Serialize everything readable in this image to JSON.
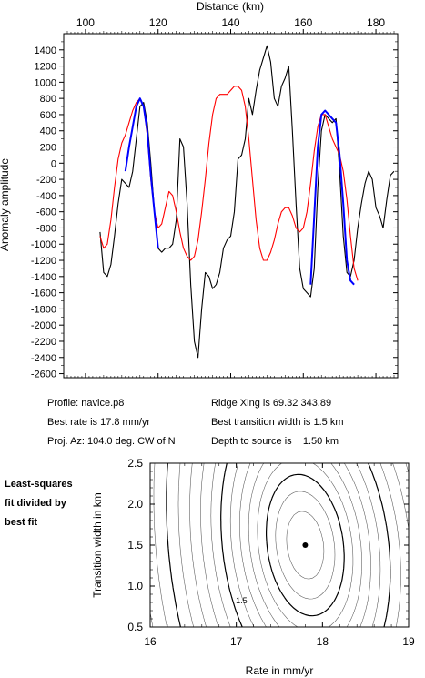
{
  "info": {
    "profile": "Profile: navice.p8",
    "best_rate": "Best rate is 17.8 mm/yr",
    "proj_az": "Proj. Az: 104.0 deg. CW of N",
    "ridge_xing": "Ridge Xing is 69.32 343.89",
    "best_width": "Best transition width is 1.5 km",
    "depth": "Depth to source is    1.50 km"
  },
  "side_note": [
    "Least-squares",
    "fit divided by",
    "best fit"
  ],
  "chart_data": [
    {
      "type": "line",
      "xlabel": "Distance (km)",
      "ylabel": "Anomaly amplitude",
      "xlim": [
        94,
        186
      ],
      "ylim": [
        -2650,
        1600
      ],
      "x_ticks": [
        100,
        120,
        140,
        160,
        180
      ],
      "y_ticks": [
        1400,
        1200,
        1000,
        800,
        600,
        400,
        200,
        0,
        -200,
        -400,
        -600,
        -800,
        -1000,
        -1200,
        -1400,
        -1600,
        -1800,
        -2000,
        -2200,
        -2400,
        -2600
      ],
      "x_axis_position": "top",
      "grid": false,
      "colors": {
        "observed": "#000000",
        "model": "#ff0000",
        "fitted": "#0000ff"
      },
      "series": [
        {
          "role": "observed",
          "color": "#000000",
          "points": [
            [
              104,
              -850
            ],
            [
              105,
              -1350
            ],
            [
              106,
              -1400
            ],
            [
              107,
              -1250
            ],
            [
              108,
              -900
            ],
            [
              109,
              -500
            ],
            [
              110,
              -200
            ],
            [
              111,
              -250
            ],
            [
              112,
              -300
            ],
            [
              113,
              -100
            ],
            [
              114,
              300
            ],
            [
              115,
              700
            ],
            [
              116,
              750
            ],
            [
              117,
              500
            ],
            [
              118,
              0
            ],
            [
              119,
              -600
            ],
            [
              120,
              -1050
            ],
            [
              121,
              -1100
            ],
            [
              122,
              -1050
            ],
            [
              123,
              -1050
            ],
            [
              124,
              -1000
            ],
            [
              125,
              -700
            ],
            [
              126,
              300
            ],
            [
              127,
              200
            ],
            [
              128,
              -500
            ],
            [
              129,
              -1500
            ],
            [
              130,
              -2200
            ],
            [
              131,
              -2400
            ],
            [
              132,
              -1800
            ],
            [
              133,
              -1350
            ],
            [
              134,
              -1400
            ],
            [
              135,
              -1550
            ],
            [
              136,
              -1500
            ],
            [
              137,
              -1350
            ],
            [
              138,
              -1050
            ],
            [
              139,
              -950
            ],
            [
              140,
              -900
            ],
            [
              141,
              -600
            ],
            [
              142,
              50
            ],
            [
              143,
              100
            ],
            [
              144,
              300
            ],
            [
              145,
              800
            ],
            [
              146,
              600
            ],
            [
              147,
              900
            ],
            [
              148,
              1150
            ],
            [
              149,
              1300
            ],
            [
              150,
              1450
            ],
            [
              151,
              1250
            ],
            [
              152,
              800
            ],
            [
              153,
              700
            ],
            [
              154,
              950
            ],
            [
              155,
              1050
            ],
            [
              156,
              1200
            ],
            [
              157,
              400
            ],
            [
              158,
              -500
            ],
            [
              159,
              -1300
            ],
            [
              160,
              -1550
            ],
            [
              161,
              -1600
            ],
            [
              162,
              -1650
            ],
            [
              163,
              -1300
            ],
            [
              164,
              -300
            ],
            [
              165,
              400
            ],
            [
              166,
              600
            ],
            [
              167,
              550
            ],
            [
              168,
              500
            ],
            [
              169,
              550
            ],
            [
              170,
              -100
            ],
            [
              171,
              -900
            ],
            [
              172,
              -1350
            ],
            [
              173,
              -1400
            ],
            [
              174,
              -1200
            ],
            [
              175,
              -800
            ],
            [
              176,
              -500
            ],
            [
              177,
              -250
            ],
            [
              178,
              -100
            ],
            [
              179,
              -200
            ],
            [
              180,
              -550
            ],
            [
              181,
              -650
            ],
            [
              182,
              -800
            ],
            [
              183,
              -450
            ],
            [
              184,
              -150
            ],
            [
              185,
              -100
            ]
          ]
        },
        {
          "role": "model",
          "color": "#ff0000",
          "points": [
            [
              104,
              -900
            ],
            [
              105,
              -1050
            ],
            [
              106,
              -1000
            ],
            [
              107,
              -700
            ],
            [
              108,
              -300
            ],
            [
              109,
              50
            ],
            [
              110,
              250
            ],
            [
              111,
              350
            ],
            [
              112,
              500
            ],
            [
              113,
              650
            ],
            [
              114,
              750
            ],
            [
              115,
              800
            ],
            [
              116,
              700
            ],
            [
              117,
              350
            ],
            [
              118,
              -200
            ],
            [
              119,
              -600
            ],
            [
              120,
              -800
            ],
            [
              121,
              -750
            ],
            [
              122,
              -550
            ],
            [
              123,
              -350
            ],
            [
              124,
              -400
            ],
            [
              125,
              -600
            ],
            [
              126,
              -850
            ],
            [
              127,
              -1050
            ],
            [
              128,
              -1150
            ],
            [
              129,
              -1200
            ],
            [
              130,
              -1150
            ],
            [
              131,
              -950
            ],
            [
              132,
              -600
            ],
            [
              133,
              -200
            ],
            [
              134,
              250
            ],
            [
              135,
              600
            ],
            [
              136,
              800
            ],
            [
              137,
              850
            ],
            [
              138,
              850
            ],
            [
              139,
              850
            ],
            [
              140,
              900
            ],
            [
              141,
              950
            ],
            [
              142,
              950
            ],
            [
              143,
              900
            ],
            [
              144,
              700
            ],
            [
              145,
              300
            ],
            [
              146,
              -200
            ],
            [
              147,
              -700
            ],
            [
              148,
              -1050
            ],
            [
              149,
              -1200
            ],
            [
              150,
              -1200
            ],
            [
              151,
              -1100
            ],
            [
              152,
              -950
            ],
            [
              153,
              -750
            ],
            [
              154,
              -600
            ],
            [
              155,
              -550
            ],
            [
              156,
              -550
            ],
            [
              157,
              -650
            ],
            [
              158,
              -800
            ],
            [
              159,
              -850
            ],
            [
              160,
              -800
            ],
            [
              161,
              -600
            ],
            [
              162,
              -250
            ],
            [
              163,
              150
            ],
            [
              164,
              450
            ],
            [
              165,
              600
            ],
            [
              166,
              600
            ],
            [
              167,
              450
            ],
            [
              168,
              300
            ],
            [
              169,
              200
            ],
            [
              170,
              100
            ],
            [
              171,
              -100
            ],
            [
              172,
              -450
            ],
            [
              173,
              -900
            ],
            [
              174,
              -1300
            ],
            [
              175,
              -1450
            ]
          ]
        },
        {
          "role": "fitted",
          "color": "#0000ff",
          "points": [
            [
              111,
              -100
            ],
            [
              112,
              200
            ],
            [
              113,
              450
            ],
            [
              114,
              700
            ],
            [
              115,
              800
            ],
            [
              116,
              700
            ],
            [
              117,
              400
            ],
            [
              118,
              -150
            ],
            [
              119,
              -600
            ],
            [
              120,
              -1050
            ]
          ]
        },
        {
          "role": "fitted",
          "color": "#0000ff",
          "points": [
            [
              162,
              -1500
            ],
            [
              163,
              -650
            ],
            [
              164,
              200
            ],
            [
              165,
              600
            ],
            [
              166,
              650
            ],
            [
              167,
              600
            ],
            [
              168,
              550
            ],
            [
              169,
              500
            ],
            [
              170,
              100
            ],
            [
              171,
              -500
            ],
            [
              172,
              -1200
            ],
            [
              173,
              -1450
            ],
            [
              174,
              -1500
            ]
          ]
        }
      ]
    },
    {
      "type": "contour",
      "xlabel": "Rate in mm/yr",
      "ylabel": "Transition width in km",
      "xlim": [
        16,
        19
      ],
      "ylim": [
        0.5,
        2.5
      ],
      "x_ticks": [
        "16",
        "17",
        "18",
        "19"
      ],
      "y_ticks": [
        "2.5",
        "2.0",
        "1.5",
        "1.0",
        "0.5"
      ],
      "best_fit": {
        "x": 17.8,
        "y": 1.5
      },
      "contour_label": "1.5",
      "contour_label_position": {
        "x": 17.06,
        "y": 0.82
      },
      "colors": {
        "contour": "#000000",
        "minor_contour": "#555555"
      }
    }
  ]
}
